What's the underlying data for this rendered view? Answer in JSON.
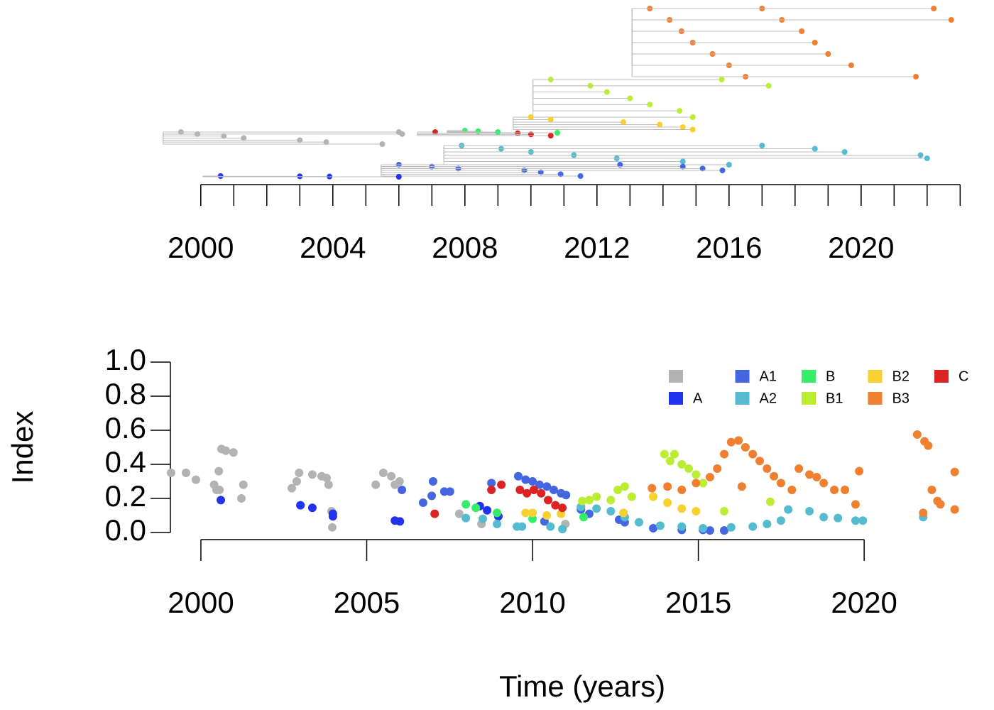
{
  "chart_data": [
    {
      "type": "tree",
      "xlim": [
        1999.08,
        2023.38
      ],
      "xticks": [
        2000,
        2004,
        2008,
        2012,
        2016,
        2020
      ],
      "xticks_minor": [
        2000,
        2001,
        2002,
        2003,
        2004,
        2005,
        2006,
        2007,
        2008,
        2009,
        2010,
        2011,
        2012,
        2013,
        2014,
        2015,
        2016,
        2017,
        2018,
        2019,
        2020,
        2021,
        2022,
        2023
      ],
      "series": [
        {
          "color": "#f08030",
          "x": [
            2013.6,
            2014.2,
            2014.56,
            2014.9,
            2015.5,
            2016.0,
            2016.5,
            2017.0,
            2017.6,
            2018.2,
            2018.6,
            2019.0,
            2019.7,
            2021.66,
            2022.2,
            2022.73
          ]
        },
        {
          "color": "#bbee33",
          "x": [
            2010.6,
            2011.8,
            2012.3,
            2013.0,
            2013.6,
            2014.5,
            2014.9,
            2015.78,
            2017.2
          ]
        },
        {
          "color": "#f8d030",
          "x": [
            2010.0,
            2010.6,
            2012.8,
            2013.9,
            2014.6,
            2014.9
          ]
        },
        {
          "color": "#dd2222",
          "x": [
            2007.1,
            2009.6,
            2010.0,
            2010.6
          ]
        },
        {
          "color": "#33ee66",
          "x": [
            2008.0,
            2008.4,
            2009.0,
            2010.8
          ]
        },
        {
          "color": "#b3b3b3",
          "x": [
            1999.4,
            1999.9,
            2000.7,
            2001.3,
            2003.0,
            2003.8,
            2005.5,
            2006.0,
            2006.1
          ]
        },
        {
          "color": "#55bbd0",
          "x": [
            2007.9,
            2009.1,
            2010.0,
            2011.3,
            2012.6,
            2014.6,
            2016.0,
            2017.0,
            2018.6,
            2019.5,
            2021.8,
            2022.0
          ]
        },
        {
          "color": "#4466e0",
          "x": [
            2006.0,
            2007.0,
            2007.8,
            2009.8,
            2010.3,
            2010.9,
            2011.5,
            2012.7,
            2014.6,
            2015.2,
            2015.8
          ]
        },
        {
          "color": "#2233ee",
          "x": [
            2000.6,
            2003.0,
            2003.9,
            2006.0
          ]
        }
      ]
    },
    {
      "type": "scatter",
      "xlabel": "Time (years)",
      "ylabel": "Index",
      "xlim": [
        1999.08,
        2023.38
      ],
      "ylim": [
        0,
        1
      ],
      "xticks": [
        2000,
        2005,
        2010,
        2015,
        2020
      ],
      "yticks": [
        {
          "value": 0,
          "label": "0.0"
        },
        {
          "value": 0.2,
          "label": "0.2"
        },
        {
          "value": 0.4,
          "label": "0.4"
        },
        {
          "value": 0.6,
          "label": "0.6"
        },
        {
          "value": 0.8,
          "label": "0.8"
        },
        {
          "value": 1,
          "label": "1.0"
        }
      ],
      "series": [
        {
          "color": "#b3b3b3",
          "x": [
            1999.1,
            1999.55,
            1999.85,
            2000.4,
            2000.47,
            2000.56,
            2000.62,
            2000.75,
            2000.98,
            2000.54,
            2001.22,
            2001.28,
            2002.74,
            2002.89,
            2002.96,
            2003.36,
            2003.64,
            2003.79,
            2003.85,
            2003.94,
            2003.96,
            2005.27,
            2005.5,
            2005.74,
            2005.85,
            2005.99,
            2007.79,
            2008.46,
            2010.99
          ],
          "values": [
            0.35,
            0.35,
            0.31,
            0.28,
            0.25,
            0.25,
            0.49,
            0.48,
            0.47,
            0.36,
            0.2,
            0.28,
            0.26,
            0.3,
            0.35,
            0.34,
            0.33,
            0.32,
            0.28,
            0.125,
            0.03,
            0.28,
            0.35,
            0.33,
            0.28,
            0.3,
            0.11,
            0.05,
            0.05
          ]
        },
        {
          "name": "A",
          "color": "#2233ee",
          "x": [
            2000.6,
            2003.0,
            2003.36,
            2003.98,
            2003.98,
            2005.85,
            2006.0,
            2008.41,
            2008.63,
            2008.97
          ],
          "values": [
            0.19,
            0.16,
            0.145,
            0.11,
            0.095,
            0.07,
            0.065,
            0.155,
            0.13,
            0.095
          ]
        },
        {
          "name": "A1",
          "color": "#4466e0",
          "x": [
            2006.06,
            2006.7,
            2007.0,
            2006.96,
            2007.34,
            2007.51,
            2008.76,
            2009.57,
            2009.79,
            2010.0,
            2010.21,
            2010.43,
            2010.64,
            2010.86,
            2011.01,
            2010.36,
            2011.46,
            2011.71,
            2012.61,
            2012.78,
            2013.64,
            2014.5,
            2015.14,
            2015.35,
            2015.78
          ],
          "values": [
            0.25,
            0.175,
            0.3,
            0.215,
            0.24,
            0.24,
            0.29,
            0.33,
            0.31,
            0.3,
            0.28,
            0.27,
            0.25,
            0.23,
            0.22,
            0.065,
            0.135,
            0.11,
            0.075,
            0.06,
            0.025,
            0.015,
            0.015,
            0.012,
            0.012
          ]
        },
        {
          "name": "A2",
          "color": "#55bbd0",
          "x": [
            2007.99,
            2008.5,
            2008.93,
            2009.53,
            2009.68,
            2010.54,
            2010.9,
            2011.46,
            2011.93,
            2012.36,
            2012.78,
            2013.21,
            2013.85,
            2014.5,
            2015.14,
            2015.99,
            2016.64,
            2017.07,
            2017.49,
            2017.71,
            2018.35,
            2018.78,
            2019.21,
            2019.74,
            2019.96,
            2021.78
          ],
          "values": [
            0.085,
            0.08,
            0.05,
            0.035,
            0.035,
            0.035,
            0.02,
            0.15,
            0.14,
            0.125,
            0.09,
            0.06,
            0.04,
            0.035,
            0.025,
            0.03,
            0.035,
            0.05,
            0.07,
            0.135,
            0.125,
            0.09,
            0.085,
            0.07,
            0.07,
            0.09
          ]
        },
        {
          "name": "B",
          "color": "#33ee66",
          "x": [
            2007.99,
            2008.29,
            2008.93,
            2010.0,
            2011.54
          ],
          "values": [
            0.165,
            0.145,
            0.115,
            0.08,
            0.09
          ]
        },
        {
          "name": "B1",
          "color": "#bbee33",
          "x": [
            2011.5,
            2011.71,
            2011.93,
            2012.36,
            2012.57,
            2012.78,
            2012.99,
            2013.98,
            2014.15,
            2014.28,
            2014.5,
            2014.71,
            2014.93,
            2015.14,
            2015.78,
            2017.17
          ],
          "values": [
            0.185,
            0.19,
            0.21,
            0.19,
            0.25,
            0.27,
            0.21,
            0.46,
            0.42,
            0.46,
            0.4,
            0.375,
            0.34,
            0.29,
            0.125,
            0.18
          ]
        },
        {
          "name": "B2",
          "color": "#f8d030",
          "x": [
            2009.79,
            2010.0,
            2010.43,
            2010.86,
            2012.74,
            2013.64,
            2014.07,
            2014.5,
            2014.93
          ],
          "values": [
            0.115,
            0.115,
            0.1,
            0.11,
            0.115,
            0.21,
            0.175,
            0.14,
            0.125
          ]
        },
        {
          "name": "B3",
          "color": "#f08030",
          "x": [
            2013.6,
            2014.07,
            2014.5,
            2014.93,
            2015.35,
            2015.57,
            2015.78,
            2015.99,
            2016.21,
            2016.42,
            2016.64,
            2016.85,
            2017.07,
            2017.28,
            2017.49,
            2017.82,
            2018.03,
            2018.35,
            2018.57,
            2018.78,
            2019.1,
            2019.42,
            2019.85,
            2019.74,
            2016.31,
            2021.6,
            2021.82,
            2021.93,
            2021.78,
            2022.04,
            2022.21,
            2022.3,
            2022.73,
            2022.73
          ],
          "values": [
            0.26,
            0.27,
            0.25,
            0.29,
            0.325,
            0.375,
            0.46,
            0.53,
            0.54,
            0.5,
            0.46,
            0.42,
            0.375,
            0.33,
            0.29,
            0.25,
            0.375,
            0.34,
            0.325,
            0.29,
            0.25,
            0.25,
            0.36,
            0.165,
            0.27,
            0.575,
            0.535,
            0.51,
            0.115,
            0.25,
            0.185,
            0.165,
            0.355,
            0.135
          ]
        },
        {
          "name": "C",
          "color": "#dd2222",
          "x": [
            2007.05,
            2008.76,
            2009.06,
            2009.62,
            2009.83,
            2010.04,
            2010.26,
            2010.47,
            2010.69,
            2010.9
          ],
          "values": [
            0.11,
            0.25,
            0.28,
            0.25,
            0.23,
            0.25,
            0.23,
            0.19,
            0.16,
            0.145
          ]
        }
      ]
    }
  ]
}
